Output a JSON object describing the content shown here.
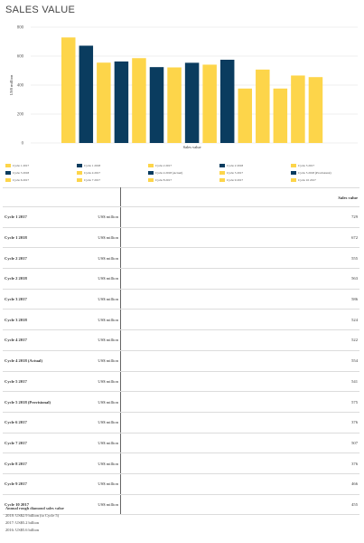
{
  "page": {
    "title": "SALES VALUE"
  },
  "chart_data": {
    "type": "bar",
    "ylabel": "US$ million",
    "xlabel": "Sales value",
    "ylim": [
      0,
      800
    ],
    "yticks": [
      0,
      200,
      400,
      600,
      800
    ],
    "grid": true,
    "legend_position": "bottom",
    "categories": [
      "Cycle 1 2017",
      "Cycle 1 2018",
      "Cycle 2 2017",
      "Cycle 2 2018",
      "Cycle 3 2017",
      "Cycle 3 2018",
      "Cycle 4 2017",
      "Cycle 4 2018 (Actual)",
      "Cycle 5 2017",
      "Cycle 5 2018 (Provisional)",
      "Cycle 6 2017",
      "Cycle 7 2017",
      "Cycle 8 2017",
      "Cycle 9 2017",
      "Cycle 10 2017"
    ],
    "values": [
      729,
      672,
      555,
      563,
      586,
      524,
      522,
      554,
      541,
      575,
      376,
      507,
      376,
      466,
      455
    ],
    "colors": [
      "#FDD54A",
      "#0A3C5F",
      "#FDD54A",
      "#0A3C5F",
      "#FDD54A",
      "#0A3C5F",
      "#FDD54A",
      "#0A3C5F",
      "#FDD54A",
      "#0A3C5F",
      "#FDD54A",
      "#FDD54A",
      "#FDD54A",
      "#FDD54A",
      "#FDD54A"
    ]
  },
  "table": {
    "header": "Sales value",
    "rows": [
      {
        "label": "Cycle 1 2017",
        "unit": "US$ million",
        "value": "729"
      },
      {
        "label": "Cycle 1 2018",
        "unit": "US$ million",
        "value": "672"
      },
      {
        "label": "Cycle 2 2017",
        "unit": "US$ million",
        "value": "555"
      },
      {
        "label": "Cycle 2 2018",
        "unit": "US$ million",
        "value": "563"
      },
      {
        "label": "Cycle 3 2017",
        "unit": "US$ million",
        "value": "586"
      },
      {
        "label": "Cycle 3 2018",
        "unit": "US$ million",
        "value": "524"
      },
      {
        "label": "Cycle 4 2017",
        "unit": "US$ million",
        "value": "522"
      },
      {
        "label": "Cycle 4 2018 (Actual)",
        "unit": "US$ million",
        "value": "554"
      },
      {
        "label": "Cycle 5 2017",
        "unit": "US$ million",
        "value": "541"
      },
      {
        "label": "Cycle 5 2018 (Provisional)",
        "unit": "US$ million",
        "value": "575"
      },
      {
        "label": "Cycle 6 2017",
        "unit": "US$ million",
        "value": "376"
      },
      {
        "label": "Cycle 7 2017",
        "unit": "US$ million",
        "value": "507"
      },
      {
        "label": "Cycle 8 2017",
        "unit": "US$ million",
        "value": "376"
      },
      {
        "label": "Cycle 9 2017",
        "unit": "US$ million",
        "value": "466"
      },
      {
        "label": "Cycle 10 2017",
        "unit": "US$ million",
        "value": "455"
      }
    ]
  },
  "notes": {
    "title": "Annual rough diamond sales value",
    "lines": [
      "2018: US$2.9 billion (to Cycle 5)",
      "2017: US$5.2 billion",
      "2016: US$5.6 billion"
    ]
  }
}
